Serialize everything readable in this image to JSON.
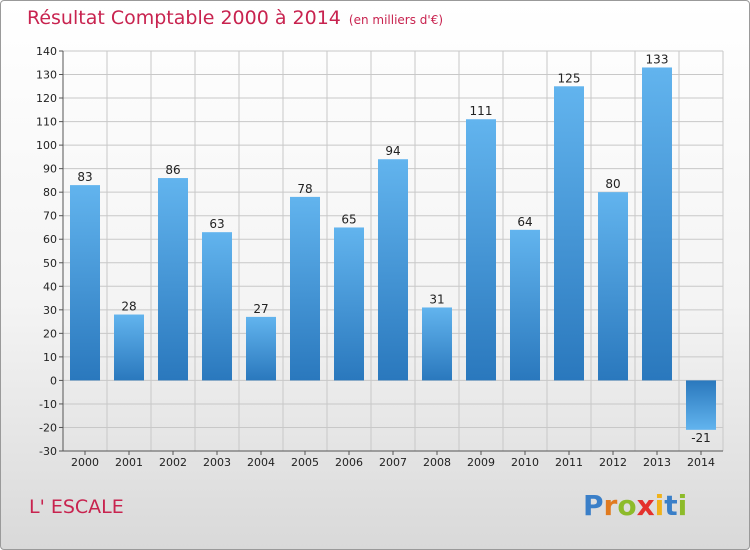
{
  "title": "Résultat Comptable 2000 à 2014",
  "subtitle": "(en milliers d'€)",
  "commune": "L' ESCALE",
  "logo": {
    "letters": [
      {
        "char": "P",
        "color": "#3a7fc8"
      },
      {
        "char": "r",
        "color": "#e07a1f"
      },
      {
        "char": "o",
        "color": "#8dbb2a"
      },
      {
        "char": "x",
        "color": "#e4312c"
      },
      {
        "char": "i",
        "color": "#f0b21a"
      },
      {
        "char": "t",
        "color": "#3a7fc8"
      },
      {
        "char": "i",
        "color": "#8dbb2a"
      }
    ]
  },
  "colors": {
    "title": "#c8234f",
    "bar_light": "#62b4ee",
    "bar_dark": "#2a78bd",
    "grid": "#c8c8c8"
  },
  "chart_data": {
    "type": "bar",
    "title": "Résultat Comptable 2000 à 2014",
    "subtitle": "(en milliers d'€)",
    "xlabel": "",
    "ylabel": "",
    "categories": [
      "2000",
      "2001",
      "2002",
      "2003",
      "2004",
      "2005",
      "2006",
      "2007",
      "2008",
      "2009",
      "2010",
      "2011",
      "2012",
      "2013",
      "2014"
    ],
    "values": [
      83,
      28,
      86,
      63,
      27,
      78,
      65,
      94,
      31,
      111,
      64,
      125,
      80,
      133,
      -21
    ],
    "ylim": [
      -30,
      140
    ],
    "yticks": [
      -30,
      -20,
      -10,
      0,
      10,
      20,
      30,
      40,
      50,
      60,
      70,
      80,
      90,
      100,
      110,
      120,
      130,
      140
    ],
    "grid": true,
    "legend": "none"
  }
}
